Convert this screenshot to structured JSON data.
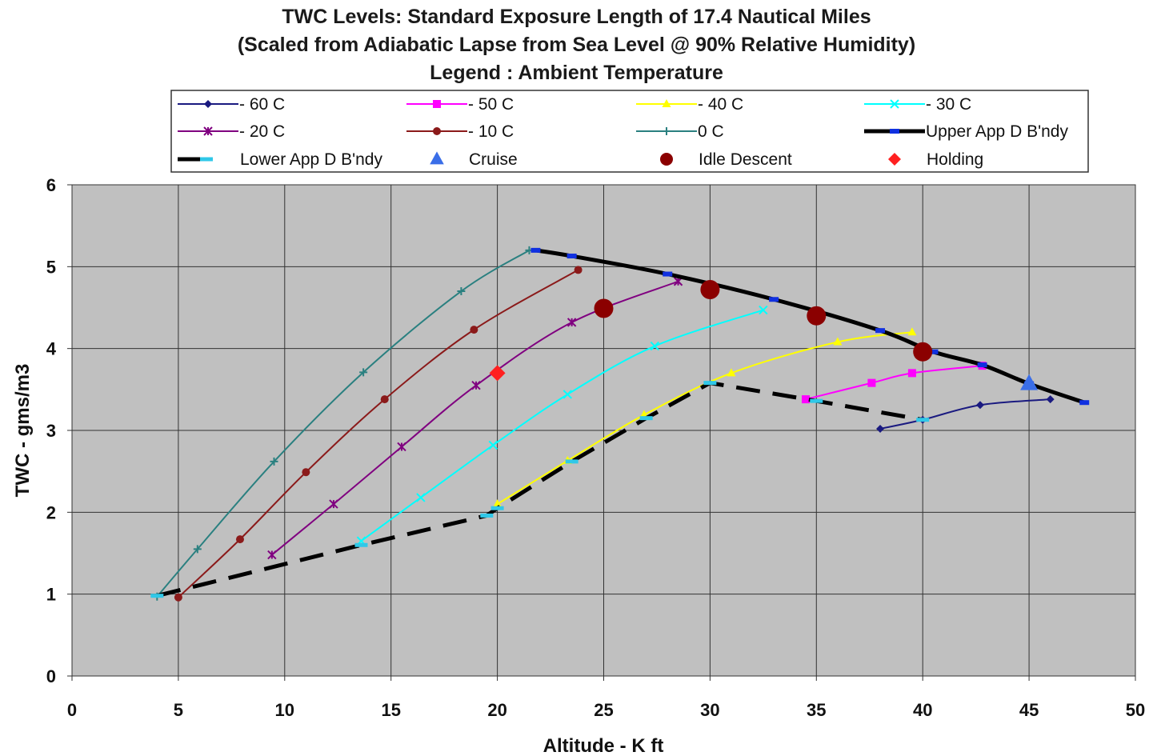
{
  "chart_data": {
    "type": "line",
    "title": [
      "TWC Levels: Standard Exposure Length of 17.4 Nautical Miles",
      "(Scaled from Adiabatic Lapse from Sea Level @ 90% Relative Humidity)",
      "Legend : Ambient Temperature"
    ],
    "xlabel": "Altitude - K ft",
    "ylabel": "TWC - gms/m3",
    "xlim": [
      0,
      50
    ],
    "ylim": [
      0,
      6
    ],
    "xticks": [
      "0",
      "5",
      "10",
      "15",
      "20",
      "25",
      "30",
      "35",
      "40",
      "45",
      "50"
    ],
    "yticks": [
      "0",
      "1",
      "2",
      "3",
      "4",
      "5",
      "6"
    ],
    "grid": true,
    "legend_position": "top",
    "series": [
      {
        "name": "- 60 C",
        "color": "#1a1a80",
        "marker": "diamond",
        "points": [
          [
            38,
            3.02
          ],
          [
            40,
            3.13
          ],
          [
            42.7,
            3.31
          ],
          [
            46,
            3.38
          ]
        ]
      },
      {
        "name": "- 50 C",
        "color": "#ff00ff",
        "marker": "square",
        "points": [
          [
            34.5,
            3.38
          ],
          [
            37.6,
            3.58
          ],
          [
            39.5,
            3.7
          ],
          [
            42.8,
            3.79
          ]
        ]
      },
      {
        "name": "- 40 C",
        "color": "#ffff00",
        "marker": "triangle",
        "points": [
          [
            20,
            2.1
          ],
          [
            23.3,
            2.63
          ],
          [
            26.9,
            3.19
          ],
          [
            31,
            3.7
          ],
          [
            36,
            4.08
          ],
          [
            39.5,
            4.2
          ]
        ]
      },
      {
        "name": "- 30 C",
        "color": "#00ffff",
        "marker": "x",
        "points": [
          [
            13.6,
            1.65
          ],
          [
            16.4,
            2.18
          ],
          [
            19.8,
            2.82
          ],
          [
            23.3,
            3.44
          ],
          [
            27.4,
            4.03
          ],
          [
            32.5,
            4.47
          ]
        ]
      },
      {
        "name": "- 20 C",
        "color": "#800080",
        "marker": "asterisk",
        "points": [
          [
            9.4,
            1.48
          ],
          [
            12.3,
            2.1
          ],
          [
            15.5,
            2.8
          ],
          [
            19,
            3.55
          ],
          [
            23.5,
            4.32
          ],
          [
            28.5,
            4.82
          ]
        ]
      },
      {
        "name": "- 10 C",
        "color": "#8b1a1a",
        "marker": "circle",
        "points": [
          [
            5,
            0.96
          ],
          [
            7.9,
            1.67
          ],
          [
            11,
            2.49
          ],
          [
            14.7,
            3.38
          ],
          [
            18.9,
            4.23
          ],
          [
            23.8,
            4.96
          ]
        ]
      },
      {
        "name": "0 C",
        "color": "#2a8080",
        "marker": "plus",
        "points": [
          [
            4,
            0.97
          ],
          [
            5.9,
            1.55
          ],
          [
            9.5,
            2.62
          ],
          [
            13.7,
            3.71
          ],
          [
            18.3,
            4.7
          ],
          [
            21.5,
            5.2
          ]
        ]
      },
      {
        "name": "Upper App D B'ndy",
        "color": "#000000",
        "marker": "dash-blue",
        "line": "thick-solid",
        "points": [
          [
            21.8,
            5.2
          ],
          [
            23.5,
            5.13
          ],
          [
            28,
            4.91
          ],
          [
            33,
            4.6
          ],
          [
            38,
            4.22
          ],
          [
            40.5,
            3.96
          ],
          [
            42.8,
            3.8
          ],
          [
            45,
            3.57
          ],
          [
            47.6,
            3.34
          ]
        ]
      },
      {
        "name": "Lower App D B'ndy",
        "color": "#000000",
        "marker": "dash-cyan",
        "line": "thick-dashed",
        "points": [
          [
            4,
            0.98
          ],
          [
            13.6,
            1.6
          ],
          [
            19.5,
            1.96
          ],
          [
            20,
            2.05
          ],
          [
            23.5,
            2.62
          ],
          [
            27,
            3.15
          ],
          [
            30,
            3.58
          ],
          [
            35,
            3.36
          ],
          [
            40,
            3.13
          ]
        ]
      },
      {
        "name": "Cruise",
        "color": "#3a6ee8",
        "marker": "triangle",
        "line": "none",
        "points": [
          [
            45,
            3.57
          ]
        ]
      },
      {
        "name": "Idle Descent",
        "color": "#8b0000",
        "marker": "circle",
        "line": "none",
        "points": [
          [
            25,
            4.49
          ],
          [
            30,
            4.72
          ],
          [
            35,
            4.4
          ],
          [
            40,
            3.96
          ]
        ]
      },
      {
        "name": "Holding",
        "color": "#ff2020",
        "marker": "diamond",
        "line": "none",
        "points": [
          [
            20,
            3.7
          ]
        ]
      }
    ]
  }
}
